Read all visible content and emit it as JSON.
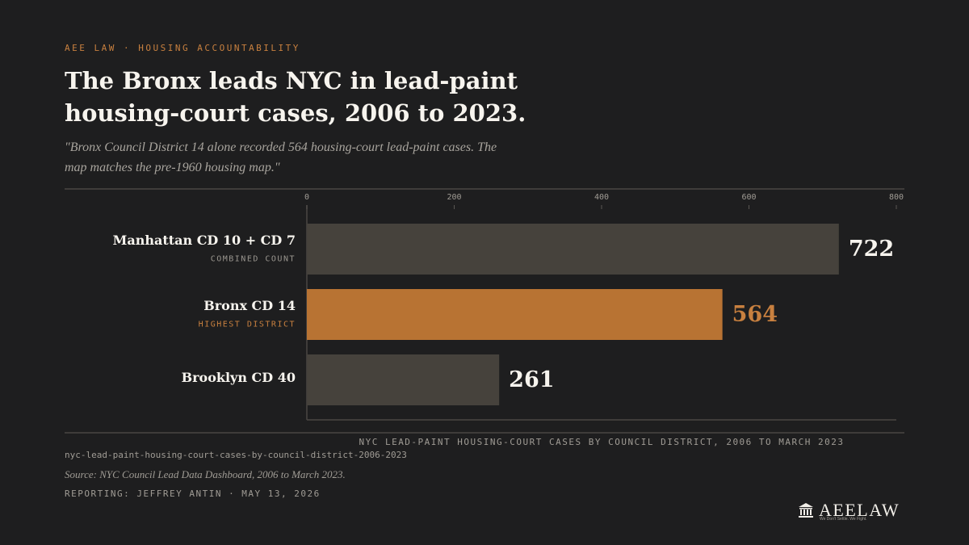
{
  "header": {
    "kicker": "AEE LAW · HOUSING ACCOUNTABILITY",
    "title": "The Bronx leads NYC in lead-paint housing-court cases, 2006 to 2023.",
    "subtitle": "\"Bronx Council District 14 alone recorded 564 housing-court lead-paint cases. The map matches the pre-1960 housing map.\""
  },
  "chart_data": {
    "type": "hbar",
    "categories": [
      "Manhattan CD 10 + CD 7",
      "Bronx CD 14",
      "Brooklyn CD 40"
    ],
    "sublabels": [
      "COMBINED COUNT",
      "HIGHEST DISTRICT",
      null
    ],
    "sublabel_colors": [
      "#9a968f",
      "#c8803f",
      "#9a968f"
    ],
    "values": [
      722,
      564,
      261
    ],
    "colors": [
      "#46423c",
      "#b87333",
      "#46423c"
    ],
    "value_label_colors": [
      "#f7f4ee",
      "#c8803f",
      "#f7f4ee"
    ],
    "xlim": [
      0,
      800
    ],
    "xticks": [
      0,
      200,
      400,
      600,
      800
    ],
    "x_label": "NYC LEAD-PAINT HOUSING-COURT CASES BY COUNCIL DISTRICT, 2006 TO MARCH 2023"
  },
  "footer": {
    "slug": "nyc-lead-paint-housing-court-cases-by-council-district-2006-2023",
    "source": "Source: NYC Council Lead Data Dashboard, 2006 to March 2023.",
    "byline": "REPORTING: JEFFREY ANTIN · MAY 13, 2026"
  },
  "brand": {
    "name": "AEELAW",
    "tagline": "We Don't Settle. We Fight."
  }
}
